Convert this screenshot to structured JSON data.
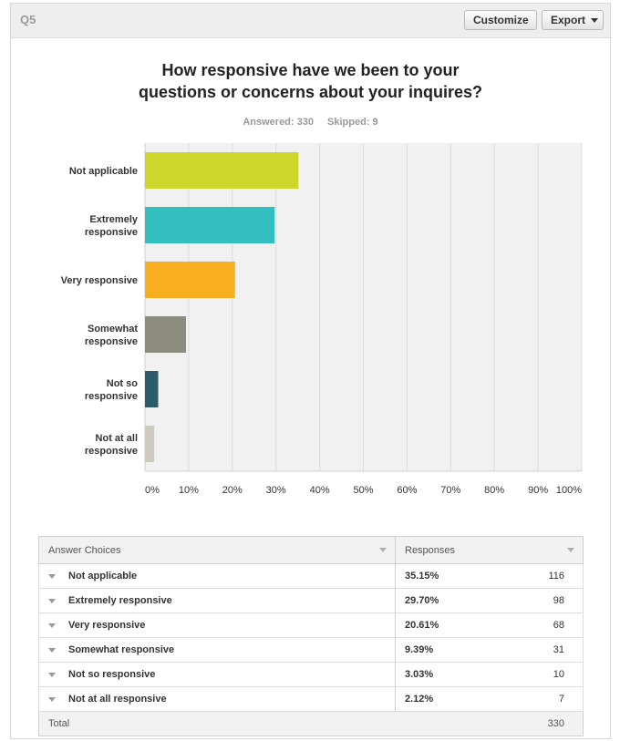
{
  "header": {
    "question_number": "Q5",
    "customize_label": "Customize",
    "export_label": "Export"
  },
  "question": {
    "title_line1": "How responsive have we been to your",
    "title_line2": "questions or concerns about your inquires?",
    "answered": "Answered: 330",
    "skipped": "Skipped: 9"
  },
  "colors": {
    "not_applicable": "#cfd62b",
    "extremely_responsive": "#33bfc0",
    "very_responsive": "#f7ae1f",
    "somewhat_responsive": "#8c8c7e",
    "not_so_responsive": "#2c5b6a",
    "not_at_all_responsive": "#cdcbc0"
  },
  "chart_data": {
    "type": "bar",
    "orientation": "horizontal",
    "categories": [
      [
        "Not applicable"
      ],
      [
        "Extremely",
        "responsive"
      ],
      [
        "Very responsive"
      ],
      [
        "Somewhat",
        "responsive"
      ],
      [
        "Not so",
        "responsive"
      ],
      [
        "Not at all",
        "responsive"
      ]
    ],
    "values": [
      35.15,
      29.7,
      20.61,
      9.39,
      3.03,
      2.12
    ],
    "bar_colors": [
      "#cfd62b",
      "#33bfc0",
      "#f7ae1f",
      "#8c8c7e",
      "#2c5b6a",
      "#cdcbc0"
    ],
    "xlim": [
      0,
      100
    ],
    "x_ticks": [
      "0%",
      "10%",
      "20%",
      "30%",
      "40%",
      "50%",
      "60%",
      "70%",
      "80%",
      "90%",
      "100%"
    ],
    "grid": true
  },
  "table": {
    "col_choice": "Answer Choices",
    "col_responses": "Responses",
    "rows": [
      {
        "choice": "Not applicable",
        "pct": "35.15%",
        "count": "116"
      },
      {
        "choice": "Extremely responsive",
        "pct": "29.70%",
        "count": "98"
      },
      {
        "choice": "Very responsive",
        "pct": "20.61%",
        "count": "68"
      },
      {
        "choice": "Somewhat responsive",
        "pct": "9.39%",
        "count": "31"
      },
      {
        "choice": "Not so responsive",
        "pct": "3.03%",
        "count": "10"
      },
      {
        "choice": "Not at all responsive",
        "pct": "2.12%",
        "count": "7"
      }
    ],
    "total_label": "Total",
    "total_value": "330"
  }
}
